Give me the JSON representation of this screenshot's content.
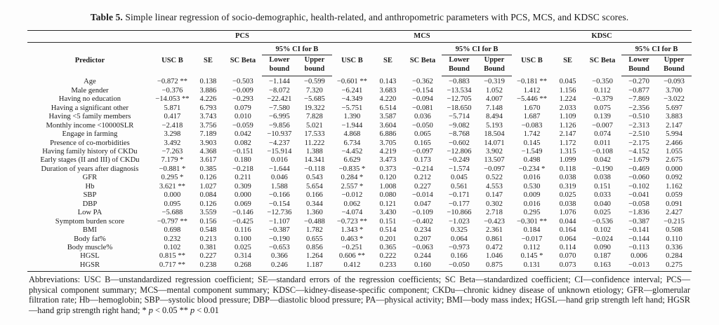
{
  "title": {
    "label": "Table 5.",
    "text": " Simple linear regression of socio-demographic, health-related, and anthropometric parameters with PCS, MCS, and KDSC scores."
  },
  "table": {
    "predictor_header": "Predictor",
    "groups": [
      {
        "name": "PCS",
        "usc_b": "USC B",
        "se": "SE",
        "sc_beta": "SC Beta",
        "ci": "95% CI for B",
        "lower": "Lower bound",
        "upper": "Upper bound"
      },
      {
        "name": "MCS",
        "usc_b": "USC B",
        "se": "SE",
        "sc_beta": "SC Beta",
        "ci": "95% CI for B",
        "lower": "Lower Bound",
        "upper": "Upper Bound"
      },
      {
        "name": "KDSC",
        "usc_b": "USC B",
        "se": "SE",
        "sc_beta": "SC Beta",
        "ci": "95% CI for B",
        "lower": "Lower Bound",
        "upper": "Upper Bound"
      }
    ],
    "rows": [
      {
        "predictor": "Age",
        "values": [
          "−0.872 **",
          "0.138",
          "−0.503",
          "−1.144",
          "−0.599",
          "−0.601 **",
          "0.143",
          "−0.362",
          "−0.883",
          "−0.319",
          "−0.181 **",
          "0.045",
          "−0.350",
          "−0.270",
          "−0.093"
        ]
      },
      {
        "predictor": "Male gender",
        "values": [
          "−0.376",
          "3.886",
          "−0.009",
          "−8.072",
          "7.320",
          "−6.241",
          "3.683",
          "−0.154",
          "−13.534",
          "1.052",
          "1.412",
          "1.156",
          "0.112",
          "−0.877",
          "3.700"
        ]
      },
      {
        "predictor": "Having no education",
        "values": [
          "−14.053 **",
          "4.226",
          "−0.293",
          "−22.421",
          "−5.685",
          "−4.349",
          "4.220",
          "−0.094",
          "−12.705",
          "4.007",
          "−5.446 **",
          "1.224",
          "−0.379",
          "−7.869",
          "−3.022"
        ]
      },
      {
        "predictor": "Having a significant other",
        "values": [
          "5.871",
          "6.793",
          "0.079",
          "−7.580",
          "19.322",
          "−5.751",
          "6.514",
          "−0.081",
          "−18.650",
          "7.148",
          "1.670",
          "2.033",
          "0.075",
          "−2.356",
          "5.697"
        ]
      },
      {
        "predictor": "Having <5 family members",
        "values": [
          "0.417",
          "3.743",
          "0.010",
          "−6.995",
          "7.828",
          "1.390",
          "3.587",
          "0.036",
          "−5.714",
          "8.494",
          "1.687",
          "1.109",
          "0.139",
          "−0.510",
          "3.883"
        ]
      },
      {
        "predictor": "Monthly income <10000SLR",
        "values": [
          "−2.418",
          "3.756",
          "−0.059",
          "−9.856",
          "5.021",
          "−1.944",
          "3.604",
          "−0.050",
          "−9.082",
          "5.193",
          "−0.083",
          "1.126",
          "−0.007",
          "−2.313",
          "2.147"
        ]
      },
      {
        "predictor": "Engage in farming",
        "values": [
          "3.298",
          "7.189",
          "0.042",
          "−10.937",
          "17.533",
          "4.868",
          "6.886",
          "0.065",
          "−8.768",
          "18.504",
          "1.742",
          "2.147",
          "0.074",
          "−2.510",
          "5.994"
        ]
      },
      {
        "predictor": "Presence of co-morbidities",
        "values": [
          "3.492",
          "3.903",
          "0.082",
          "−4.237",
          "11.222",
          "6.734",
          "3.705",
          "0.165",
          "−0.602",
          "14.071",
          "0.145",
          "1.172",
          "0.011",
          "−2.175",
          "2.466"
        ]
      },
      {
        "predictor": "Having family history of CKDu",
        "values": [
          "−7.263",
          "4.368",
          "−0.151",
          "−15.914",
          "1.388",
          "−4.452",
          "4.219",
          "−0.097",
          "−12.806",
          "3.902",
          "−1.549",
          "1.315",
          "−0.108",
          "−4.152",
          "1.055"
        ]
      },
      {
        "predictor": "Early stages (II and III) of CKDu",
        "values": [
          "7.179 *",
          "3.617",
          "0.180",
          "0.016",
          "14.341",
          "6.629",
          "3.473",
          "0.173",
          "−0.249",
          "13.507",
          "0.498",
          "1.099",
          "0.042",
          "−1.679",
          "2.675"
        ]
      },
      {
        "predictor": "Duration of years after diagnosis",
        "values": [
          "−0.881 *",
          "0.385",
          "−0.218",
          "−1.644",
          "−0.118",
          "−0.835 *",
          "0.373",
          "−0.214",
          "−1.574",
          "−0.097",
          "−0.234 *",
          "0.118",
          "−0.190",
          "−0.469",
          "0.000"
        ]
      },
      {
        "predictor": "GFR",
        "values": [
          "0.295 *",
          "0.126",
          "0.211",
          "0.046",
          "0.543",
          "0.284 *",
          "0.120",
          "0.212",
          "0.045",
          "0.522",
          "0.016",
          "0.038",
          "0.038",
          "−0.060",
          "0.092"
        ]
      },
      {
        "predictor": "Hb",
        "values": [
          "3.621 **",
          "1.027",
          "0.309",
          "1.588",
          "5.654",
          "2.557 *",
          "1.008",
          "0.227",
          "0.561",
          "4.553",
          "0.530",
          "0.319",
          "0.151",
          "−0.102",
          "1.162"
        ]
      },
      {
        "predictor": "SBP",
        "values": [
          "0.000",
          "0.084",
          "0.000",
          "−0.166",
          "0.166",
          "−0.012",
          "0.080",
          "−0.014",
          "−0.171",
          "0.147",
          "0.009",
          "0.025",
          "0.033",
          "−0.041",
          "0.059"
        ]
      },
      {
        "predictor": "DBP",
        "values": [
          "0.095",
          "0.126",
          "0.069",
          "−0.154",
          "0.344",
          "0.062",
          "0.121",
          "0.047",
          "−0.177",
          "0.302",
          "0.016",
          "0.038",
          "0.040",
          "−0.058",
          "0.091"
        ]
      },
      {
        "predictor": "Low PA",
        "values": [
          "−5.688",
          "3.559",
          "−0.146",
          "−12.736",
          "1.360",
          "−4.074",
          "3.430",
          "−0.109",
          "−10.866",
          "2.718",
          "0.295",
          "1.076",
          "0.025",
          "−1.836",
          "2.427"
        ]
      },
      {
        "predictor": "Symptom burden score",
        "values": [
          "−0.797 **",
          "0.156",
          "−0.425",
          "−1.107",
          "−0.488",
          "−0.723 **",
          "0.151",
          "−0.402",
          "−1.023",
          "−0.423",
          "−0.301 **",
          "0.044",
          "−0.536",
          "−0.387",
          "−0.215"
        ]
      },
      {
        "predictor": "BMI",
        "values": [
          "0.698",
          "0.548",
          "0.116",
          "−0.387",
          "1.782",
          "1.343 *",
          "0.514",
          "0.234",
          "0.325",
          "2.361",
          "0.184",
          "0.164",
          "0.102",
          "−0.141",
          "0.508"
        ]
      },
      {
        "predictor": "Body fat%",
        "values": [
          "0.232",
          "0.213",
          "0.100",
          "−0.190",
          "0.655",
          "0.463 *",
          "0.201",
          "0.207",
          "0.064",
          "0.861",
          "−0.017",
          "0.064",
          "−0.024",
          "−0.144",
          "0.110"
        ]
      },
      {
        "predictor": "Body muscle%",
        "values": [
          "0.102",
          "0.381",
          "0.025",
          "−0.653",
          "0.856",
          "−0.251",
          "0.365",
          "−0.063",
          "−0.973",
          "0.472",
          "0.112",
          "0.114",
          "0.090",
          "−0.113",
          "0.336"
        ]
      },
      {
        "predictor": "HGSL",
        "values": [
          "0.815 **",
          "0.227",
          "0.314",
          "0.366",
          "1.264",
          "0.606 **",
          "0.222",
          "0.244",
          "0.166",
          "1.046",
          "0.145 *",
          "0.070",
          "0.187",
          "0.006",
          "0.284"
        ]
      },
      {
        "predictor": "HGSR",
        "values": [
          "0.717 **",
          "0.238",
          "0.268",
          "0.246",
          "1.187",
          "0.412",
          "0.233",
          "0.160",
          "−0.050",
          "0.875",
          "0.131",
          "0.073",
          "0.163",
          "−0.013",
          "0.275"
        ]
      }
    ]
  },
  "footnote": {
    "text": "Abbreviations: USC B—unstandardized regression coefficient; SE—standard errors of the regression coefficients; SC Beta—standardized coefficient; CI—confidence interval; PCS—physical component summary; MCS—mental component summary; KDSC—kidney-disease-specific component; CKDu—chronic kidney disease of unknown etiology; GFR—glomerular filtration rate; Hb—hemoglobin; SBP—systolic blood pressure; DBP—diastolic blood pressure; PA—physical activity; BMI—body mass index; HGSL—hand grip strength left hand; HGSR—hand grip strength right hand; ",
    "sig1_sym": "* ",
    "sig1_p": "p",
    "sig1_rest": " < 0.05 ",
    "sig2_sym": "** ",
    "sig2_p": "p",
    "sig2_rest": " < 0.01"
  }
}
